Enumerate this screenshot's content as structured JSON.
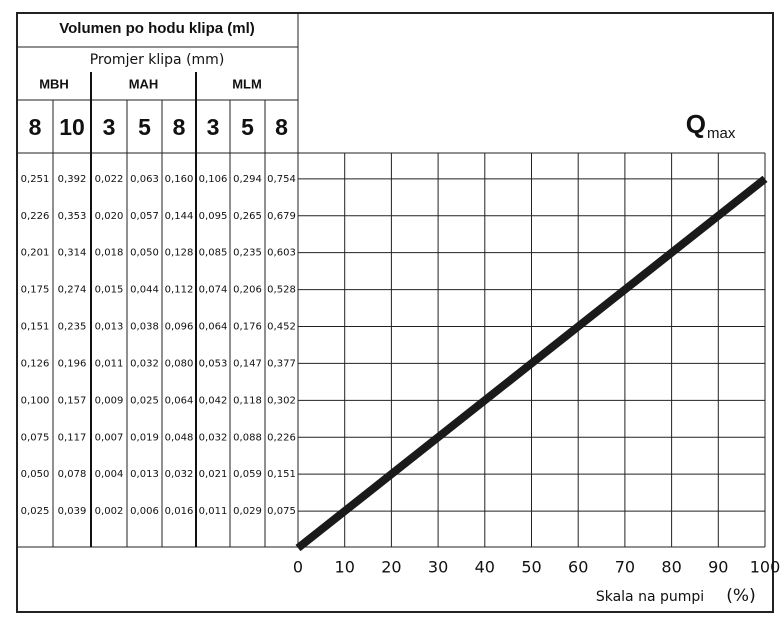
{
  "table": {
    "title": "Volumen po hodu klipa (ml)",
    "subtitle": "Promjer klipa (mm)",
    "groups": [
      {
        "name": "MBH",
        "sizes": [
          "8",
          "10"
        ]
      },
      {
        "name": "MAH",
        "sizes": [
          "3",
          "5",
          "8"
        ]
      },
      {
        "name": "MLM",
        "sizes": [
          "3",
          "5",
          "8"
        ]
      }
    ],
    "rows": [
      [
        "0,251",
        "0,392",
        "0,022",
        "0,063",
        "0,160",
        "0,106",
        "0,294",
        "0,754"
      ],
      [
        "0,226",
        "0,353",
        "0,020",
        "0,057",
        "0,144",
        "0,095",
        "0,265",
        "0,679"
      ],
      [
        "0,201",
        "0,314",
        "0,018",
        "0,050",
        "0,128",
        "0,085",
        "0,235",
        "0,603"
      ],
      [
        "0,175",
        "0,274",
        "0,015",
        "0,044",
        "0,112",
        "0,074",
        "0,206",
        "0,528"
      ],
      [
        "0,151",
        "0,235",
        "0,013",
        "0,038",
        "0,096",
        "0,064",
        "0,176",
        "0,452"
      ],
      [
        "0,126",
        "0,196",
        "0,011",
        "0,032",
        "0,080",
        "0,053",
        "0,147",
        "0,377"
      ],
      [
        "0,100",
        "0,157",
        "0,009",
        "0,025",
        "0,064",
        "0,042",
        "0,118",
        "0,302"
      ],
      [
        "0,075",
        "0,117",
        "0,007",
        "0,019",
        "0,048",
        "0,032",
        "0,088",
        "0,226"
      ],
      [
        "0,050",
        "0,078",
        "0,004",
        "0,013",
        "0,032",
        "0,021",
        "0,059",
        "0,151"
      ],
      [
        "0,025",
        "0,039",
        "0,002",
        "0,006",
        "0,016",
        "0,011",
        "0,029",
        "0,075"
      ]
    ]
  },
  "chart_data": {
    "type": "line",
    "annotation": {
      "main": "Q",
      "sub": "max"
    },
    "x": [
      0,
      100
    ],
    "series": [
      {
        "color": "#1a1a1a",
        "values": [
          0,
          100
        ]
      }
    ],
    "xlabel": "Skala na pumpi",
    "xunit": "(%)",
    "xlim": [
      0,
      100
    ],
    "xticks": [
      0,
      10,
      20,
      30,
      40,
      50,
      60,
      70,
      80,
      90,
      100
    ],
    "ylim": [
      0,
      107
    ],
    "yticks": [
      100,
      90,
      80,
      70,
      60,
      50,
      40,
      30,
      20,
      10
    ],
    "grid": true
  }
}
